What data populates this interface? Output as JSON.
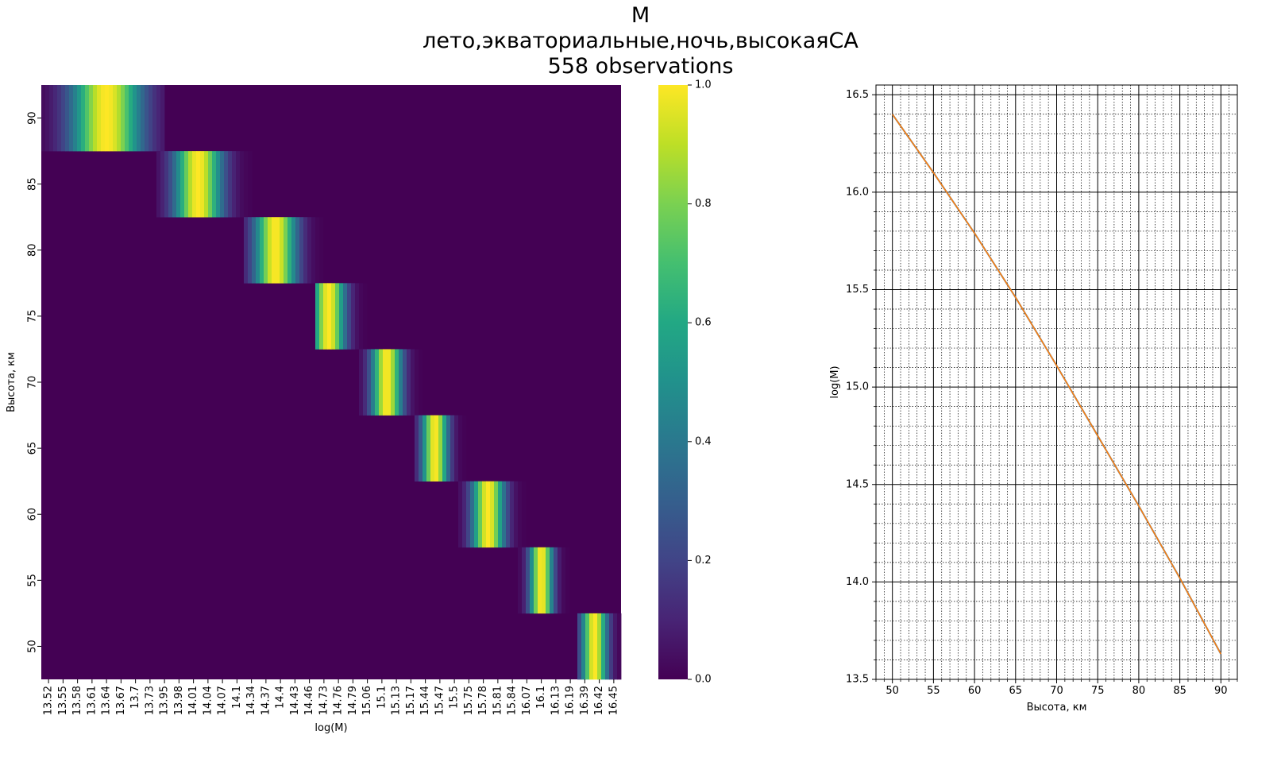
{
  "title_lines": [
    "M",
    "лето,экваториальные,ночь,высокаяСА",
    "558 observations"
  ],
  "chart_data": [
    {
      "type": "heatmap",
      "xlabel": "log(M)",
      "ylabel": "Высота, км",
      "x_tick_labels": [
        "13.52",
        "13.55",
        "13.58",
        "13.61",
        "13.64",
        "13.67",
        "13.7",
        "13.73",
        "13.95",
        "13.98",
        "14.01",
        "14.04",
        "14.07",
        "14.1",
        "14.34",
        "14.37",
        "14.4",
        "14.43",
        "14.46",
        "14.73",
        "14.76",
        "14.79",
        "15.06",
        "15.1",
        "15.13",
        "15.17",
        "15.44",
        "15.47",
        "15.5",
        "15.75",
        "15.78",
        "15.81",
        "15.84",
        "16.07",
        "16.1",
        "16.13",
        "16.19",
        "16.39",
        "16.42",
        "16.45"
      ],
      "y_tick_labels": [
        "90",
        "85",
        "80",
        "75",
        "70",
        "65",
        "60",
        "55",
        "50"
      ],
      "colormap": "viridis",
      "colorbar": {
        "min": 0.0,
        "max": 1.0,
        "ticks": [
          "0.0",
          "0.2",
          "0.4",
          "0.6",
          "0.8",
          "1.0"
        ]
      },
      "rows": [
        {
          "altitude": 90,
          "peak_log_m": 13.64,
          "band": [
            13.52,
            13.73
          ]
        },
        {
          "altitude": 85,
          "peak_log_m": 14.02,
          "band": [
            13.95,
            14.1
          ]
        },
        {
          "altitude": 80,
          "peak_log_m": 14.39,
          "band": [
            14.34,
            14.46
          ]
        },
        {
          "altitude": 75,
          "peak_log_m": 14.74,
          "band": [
            14.73,
            14.79
          ]
        },
        {
          "altitude": 70,
          "peak_log_m": 15.11,
          "band": [
            15.06,
            15.17
          ]
        },
        {
          "altitude": 65,
          "peak_log_m": 15.46,
          "band": [
            15.44,
            15.5
          ]
        },
        {
          "altitude": 60,
          "peak_log_m": 15.79,
          "band": [
            15.75,
            15.84
          ]
        },
        {
          "altitude": 55,
          "peak_log_m": 16.1,
          "band": [
            16.07,
            16.13
          ]
        },
        {
          "altitude": 50,
          "peak_log_m": 16.41,
          "band": [
            16.39,
            16.45
          ]
        }
      ]
    },
    {
      "type": "line",
      "xlabel": "Высота, км",
      "ylabel": "log(M)",
      "xlim": [
        48,
        92
      ],
      "ylim": [
        13.5,
        16.55
      ],
      "x_ticks": [
        "50",
        "55",
        "60",
        "65",
        "70",
        "75",
        "80",
        "85",
        "90"
      ],
      "y_ticks": [
        "13.5",
        "14.0",
        "14.5",
        "15.0",
        "15.5",
        "16.0",
        "16.5"
      ],
      "grid": true,
      "series": [
        {
          "color": "#1f77b4",
          "x": [
            50,
            55,
            60,
            65,
            70,
            75,
            80,
            85,
            90
          ],
          "y": [
            16.4,
            16.1,
            15.79,
            15.46,
            15.11,
            14.75,
            14.39,
            14.02,
            13.63
          ]
        },
        {
          "color": "#ff7f0e",
          "x": [
            50,
            55,
            60,
            65,
            70,
            75,
            80,
            85,
            90
          ],
          "y": [
            16.4,
            16.1,
            15.79,
            15.46,
            15.11,
            14.75,
            14.39,
            14.02,
            13.63
          ]
        }
      ]
    }
  ]
}
